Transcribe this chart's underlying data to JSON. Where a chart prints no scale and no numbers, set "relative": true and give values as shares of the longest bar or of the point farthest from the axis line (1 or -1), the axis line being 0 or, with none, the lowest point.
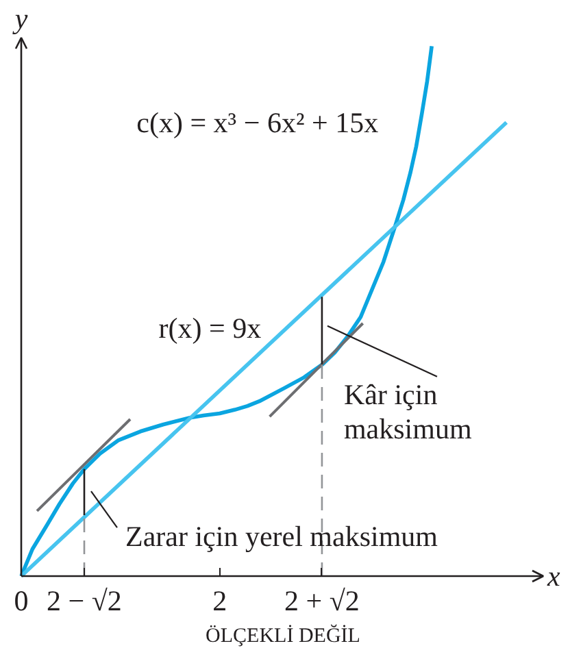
{
  "chart_data": {
    "type": "line",
    "xlabel": "x",
    "ylabel": "y",
    "relative": true,
    "xlim": [
      0,
      5.26
    ],
    "xticks": [
      0,
      {
        "value": 0.635,
        "label": "2 − √2"
      },
      2,
      {
        "value": 3.03,
        "label": "2 + √2"
      }
    ],
    "series": [
      {
        "name": "c(x) = x³ − 6x² + 15x",
        "color": "#0ba5e0",
        "x": [
          0,
          0.113,
          0.249,
          0.385,
          0.521,
          0.635,
          0.793,
          0.976,
          1.201,
          1.429,
          1.701,
          1.837,
          2.0,
          2.154,
          2.28,
          2.4,
          2.653,
          2.85,
          3.038,
          3.16,
          3.288,
          3.42,
          3.537,
          3.65,
          3.765,
          3.85,
          3.922,
          3.98,
          4.037,
          4.09,
          4.136
        ],
        "values": [
          0,
          0.051,
          0.093,
          0.136,
          0.175,
          0.202,
          0.231,
          0.256,
          0.273,
          0.286,
          0.299,
          0.303,
          0.307,
          0.314,
          0.321,
          0.33,
          0.355,
          0.375,
          0.4,
          0.422,
          0.452,
          0.489,
          0.542,
          0.593,
          0.659,
          0.71,
          0.762,
          0.811,
          0.873,
          0.934,
          1.0
        ]
      },
      {
        "name": "r(x) = 9x",
        "color": "#47c4ef",
        "x": [
          0,
          4.889
        ],
        "values": [
          0,
          0.856
        ]
      },
      {
        "color": "#6d6e71",
        "x": [
          0.159,
          1.098
        ],
        "values": [
          0.123,
          0.296
        ]
      },
      {
        "color": "#6d6e71",
        "x": [
          2.503,
          3.442
        ],
        "values": [
          0.301,
          0.477
        ]
      },
      {
        "color": "#231f20",
        "x": [
          0.635,
          0.635
        ],
        "values": [
          0.115,
          0.202
        ]
      },
      {
        "color": "#231f20",
        "x": [
          3.03,
          3.03
        ],
        "values": [
          0.4,
          0.527
        ]
      },
      {
        "color": "#939598",
        "line_style": "dashed",
        "x": [
          0.635,
          0.635
        ],
        "values": [
          0,
          0.115
        ]
      },
      {
        "color": "#939598",
        "line_style": "dashed",
        "x": [
          3.03,
          3.03
        ],
        "values": [
          0,
          0.4
        ]
      }
    ],
    "annotations": [
      {
        "text": "Kâr için\nmaksimum",
        "x": 3.03,
        "y": 0.472
      },
      {
        "text": "Zarar için yerel maksimum",
        "x": 0.635,
        "y": 0.16
      },
      "ÖLÇEKLİ DEĞİL"
    ]
  }
}
